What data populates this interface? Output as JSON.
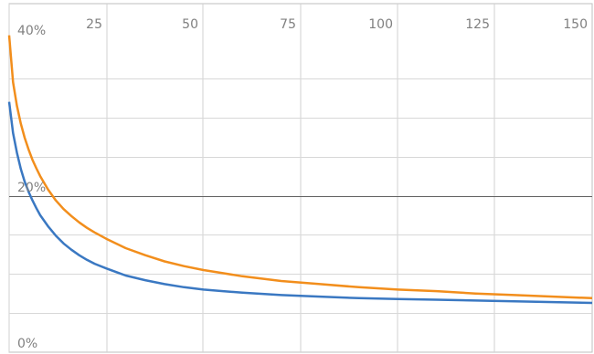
{
  "chart_data": {
    "type": "line",
    "title": "",
    "xlabel": "",
    "ylabel": "",
    "xlim": [
      0,
      150
    ],
    "ylim": [
      0,
      40
    ],
    "x_ticks": [
      25,
      50,
      75,
      100,
      125,
      150
    ],
    "x_tick_labels": [
      "25",
      "50",
      "75",
      "100",
      "125",
      "150"
    ],
    "y_ticks": [
      0,
      20,
      40
    ],
    "y_tick_labels": [
      "0%",
      "20%",
      "40%"
    ],
    "grid": true,
    "legend": "none",
    "x": [
      0,
      1,
      2,
      3,
      4,
      5,
      6,
      7,
      8,
      10,
      12,
      14,
      16,
      18,
      20,
      22,
      25,
      30,
      35,
      40,
      45,
      50,
      55,
      60,
      70,
      80,
      90,
      100,
      110,
      120,
      130,
      140,
      150
    ],
    "series": [
      {
        "color": "#f28e1c",
        "values": [
          40.5,
          34.5,
          31.5,
          29.2,
          27.4,
          25.9,
          24.6,
          23.5,
          22.5,
          20.8,
          19.4,
          18.3,
          17.4,
          16.6,
          15.9,
          15.3,
          14.5,
          13.3,
          12.4,
          11.6,
          11.0,
          10.5,
          10.1,
          9.7,
          9.1,
          8.7,
          8.3,
          8.0,
          7.8,
          7.5,
          7.3,
          7.1,
          6.9
        ]
      },
      {
        "color": "#3a78c2",
        "values": [
          32.0,
          28.0,
          25.5,
          23.4,
          21.8,
          20.5,
          19.4,
          18.4,
          17.5,
          16.1,
          14.9,
          13.9,
          13.1,
          12.4,
          11.8,
          11.3,
          10.7,
          9.8,
          9.2,
          8.7,
          8.3,
          8.0,
          7.8,
          7.6,
          7.3,
          7.1,
          6.9,
          6.8,
          6.7,
          6.6,
          6.5,
          6.4,
          6.3
        ]
      }
    ]
  }
}
